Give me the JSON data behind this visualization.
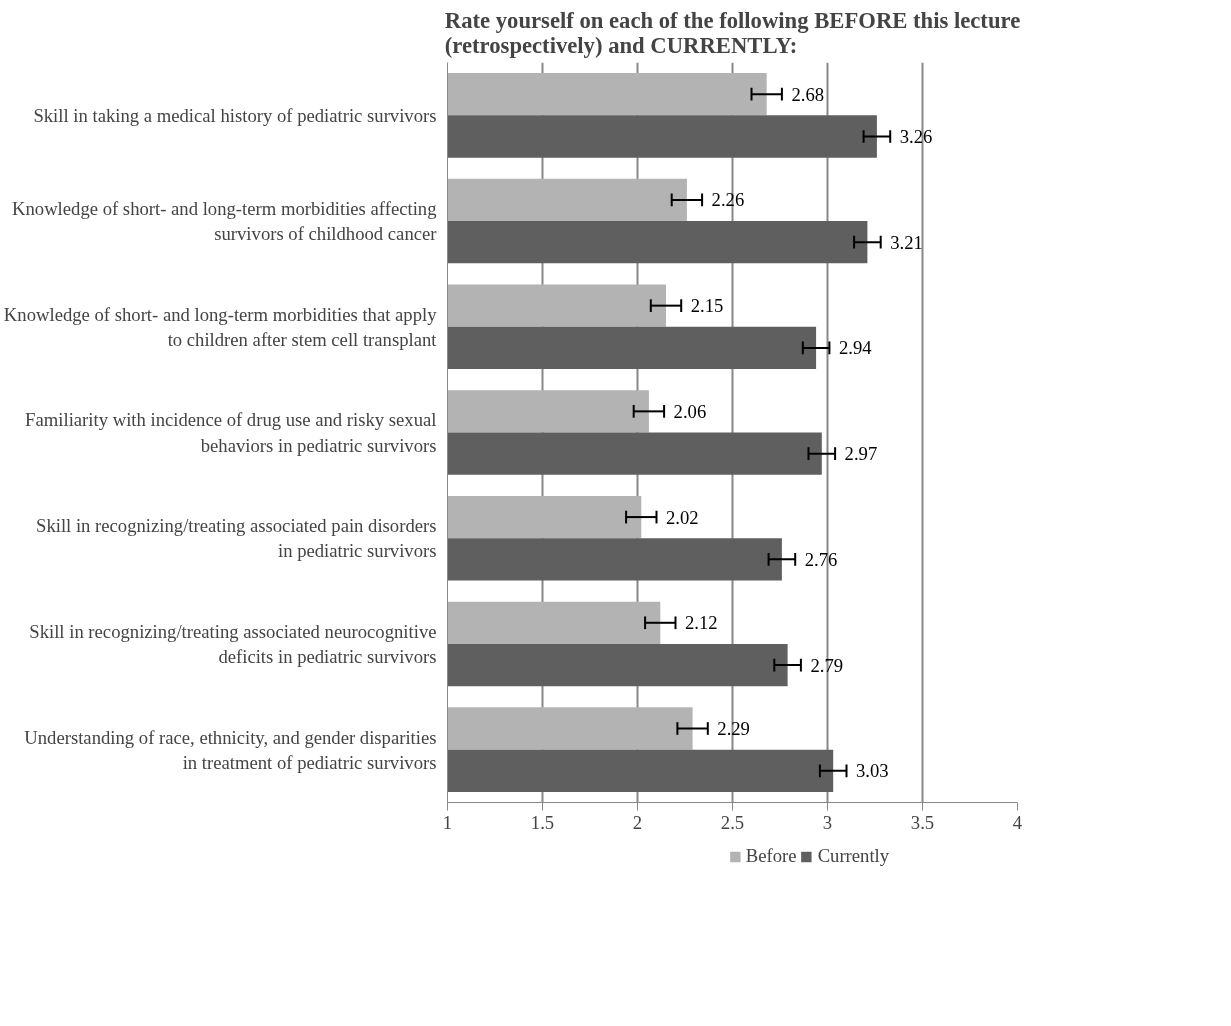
{
  "chart_data": {
    "type": "bar",
    "orientation": "horizontal",
    "title": "Rate yourself on each of the following BEFORE this lecture (retrospectively) and CURRENTLY:",
    "categories": [
      "Skill in taking a medical history of pediatric survivors",
      "Knowledge of short- and long-term morbidities affecting survivors of childhood cancer",
      "Knowledge of short- and long-term morbidities that apply to children after stem cell transplant",
      "Familiarity with incidence of drug use and risky sexual behaviors in pediatric survivors",
      "Skill in recognizing/treating associated pain disorders in pediatric survivors",
      "Skill in recognizing/treating associated neurocognitive deficits in pediatric survivors",
      "Understanding of race, ethnicity, and gender disparities in treatment of pediatric survivors"
    ],
    "series": [
      {
        "name": "Before",
        "color": "#b3b3b3",
        "values": [
          2.68,
          2.26,
          2.15,
          2.06,
          2.02,
          2.12,
          2.29
        ],
        "errors": [
          0.08,
          0.08,
          0.08,
          0.08,
          0.08,
          0.08,
          0.08
        ]
      },
      {
        "name": "Currently",
        "color": "#5f5f5f",
        "values": [
          3.26,
          3.21,
          2.94,
          2.97,
          2.76,
          2.79,
          3.03
        ],
        "errors": [
          0.07,
          0.07,
          0.07,
          0.07,
          0.07,
          0.07,
          0.07
        ]
      }
    ],
    "xlim": [
      1,
      4
    ],
    "xticks": [
      1,
      1.5,
      2,
      2.5,
      3,
      3.5,
      4
    ],
    "grid": "x",
    "legend": "bottom",
    "data_labels": true
  }
}
